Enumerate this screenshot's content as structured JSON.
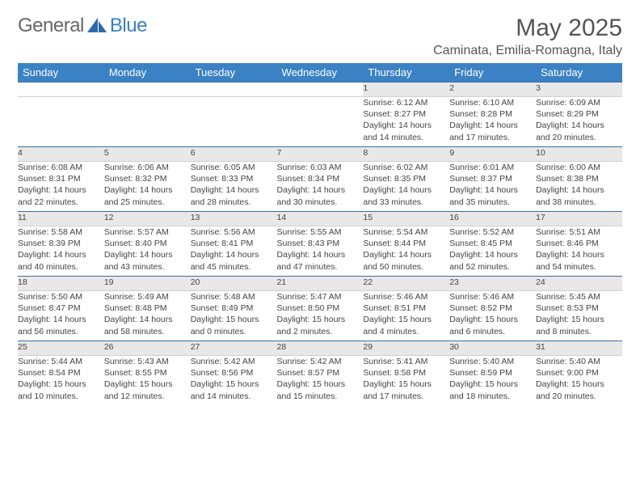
{
  "brand": {
    "word1": "General",
    "word2": "Blue"
  },
  "title": "May 2025",
  "location": "Caminata, Emilia-Romagna, Italy",
  "colors": {
    "header_bg": "#3b82c4",
    "header_text": "#ffffff",
    "daynum_bg": "#e8e8e8",
    "row_border": "#3b6fa0",
    "text": "#444444",
    "brand_gray": "#666666",
    "brand_blue": "#3b7fbf"
  },
  "typography": {
    "body_pt": 10.5,
    "header_pt": 13,
    "title_pt": 30
  },
  "weekdays": [
    "Sunday",
    "Monday",
    "Tuesday",
    "Wednesday",
    "Thursday",
    "Friday",
    "Saturday"
  ],
  "weeks": [
    {
      "nums": [
        "",
        "",
        "",
        "",
        "1",
        "2",
        "3"
      ],
      "cells": [
        null,
        null,
        null,
        null,
        {
          "sunrise": "6:12 AM",
          "sunset": "8:27 PM",
          "day_h": 14,
          "day_m": 14
        },
        {
          "sunrise": "6:10 AM",
          "sunset": "8:28 PM",
          "day_h": 14,
          "day_m": 17
        },
        {
          "sunrise": "6:09 AM",
          "sunset": "8:29 PM",
          "day_h": 14,
          "day_m": 20
        }
      ]
    },
    {
      "nums": [
        "4",
        "5",
        "6",
        "7",
        "8",
        "9",
        "10"
      ],
      "cells": [
        {
          "sunrise": "6:08 AM",
          "sunset": "8:31 PM",
          "day_h": 14,
          "day_m": 22
        },
        {
          "sunrise": "6:06 AM",
          "sunset": "8:32 PM",
          "day_h": 14,
          "day_m": 25
        },
        {
          "sunrise": "6:05 AM",
          "sunset": "8:33 PM",
          "day_h": 14,
          "day_m": 28
        },
        {
          "sunrise": "6:03 AM",
          "sunset": "8:34 PM",
          "day_h": 14,
          "day_m": 30
        },
        {
          "sunrise": "6:02 AM",
          "sunset": "8:35 PM",
          "day_h": 14,
          "day_m": 33
        },
        {
          "sunrise": "6:01 AM",
          "sunset": "8:37 PM",
          "day_h": 14,
          "day_m": 35
        },
        {
          "sunrise": "6:00 AM",
          "sunset": "8:38 PM",
          "day_h": 14,
          "day_m": 38
        }
      ]
    },
    {
      "nums": [
        "11",
        "12",
        "13",
        "14",
        "15",
        "16",
        "17"
      ],
      "cells": [
        {
          "sunrise": "5:58 AM",
          "sunset": "8:39 PM",
          "day_h": 14,
          "day_m": 40
        },
        {
          "sunrise": "5:57 AM",
          "sunset": "8:40 PM",
          "day_h": 14,
          "day_m": 43
        },
        {
          "sunrise": "5:56 AM",
          "sunset": "8:41 PM",
          "day_h": 14,
          "day_m": 45
        },
        {
          "sunrise": "5:55 AM",
          "sunset": "8:43 PM",
          "day_h": 14,
          "day_m": 47
        },
        {
          "sunrise": "5:54 AM",
          "sunset": "8:44 PM",
          "day_h": 14,
          "day_m": 50
        },
        {
          "sunrise": "5:52 AM",
          "sunset": "8:45 PM",
          "day_h": 14,
          "day_m": 52
        },
        {
          "sunrise": "5:51 AM",
          "sunset": "8:46 PM",
          "day_h": 14,
          "day_m": 54
        }
      ]
    },
    {
      "nums": [
        "18",
        "19",
        "20",
        "21",
        "22",
        "23",
        "24"
      ],
      "cells": [
        {
          "sunrise": "5:50 AM",
          "sunset": "8:47 PM",
          "day_h": 14,
          "day_m": 56
        },
        {
          "sunrise": "5:49 AM",
          "sunset": "8:48 PM",
          "day_h": 14,
          "day_m": 58
        },
        {
          "sunrise": "5:48 AM",
          "sunset": "8:49 PM",
          "day_h": 15,
          "day_m": 0
        },
        {
          "sunrise": "5:47 AM",
          "sunset": "8:50 PM",
          "day_h": 15,
          "day_m": 2
        },
        {
          "sunrise": "5:46 AM",
          "sunset": "8:51 PM",
          "day_h": 15,
          "day_m": 4
        },
        {
          "sunrise": "5:46 AM",
          "sunset": "8:52 PM",
          "day_h": 15,
          "day_m": 6
        },
        {
          "sunrise": "5:45 AM",
          "sunset": "8:53 PM",
          "day_h": 15,
          "day_m": 8
        }
      ]
    },
    {
      "nums": [
        "25",
        "26",
        "27",
        "28",
        "29",
        "30",
        "31"
      ],
      "cells": [
        {
          "sunrise": "5:44 AM",
          "sunset": "8:54 PM",
          "day_h": 15,
          "day_m": 10
        },
        {
          "sunrise": "5:43 AM",
          "sunset": "8:55 PM",
          "day_h": 15,
          "day_m": 12
        },
        {
          "sunrise": "5:42 AM",
          "sunset": "8:56 PM",
          "day_h": 15,
          "day_m": 14
        },
        {
          "sunrise": "5:42 AM",
          "sunset": "8:57 PM",
          "day_h": 15,
          "day_m": 15
        },
        {
          "sunrise": "5:41 AM",
          "sunset": "8:58 PM",
          "day_h": 15,
          "day_m": 17
        },
        {
          "sunrise": "5:40 AM",
          "sunset": "8:59 PM",
          "day_h": 15,
          "day_m": 18
        },
        {
          "sunrise": "5:40 AM",
          "sunset": "9:00 PM",
          "day_h": 15,
          "day_m": 20
        }
      ]
    }
  ],
  "labels": {
    "sunrise": "Sunrise: ",
    "sunset": "Sunset: ",
    "daylight": "Daylight: ",
    "hours": " hours",
    "and": "and ",
    "minutes": " minutes."
  }
}
